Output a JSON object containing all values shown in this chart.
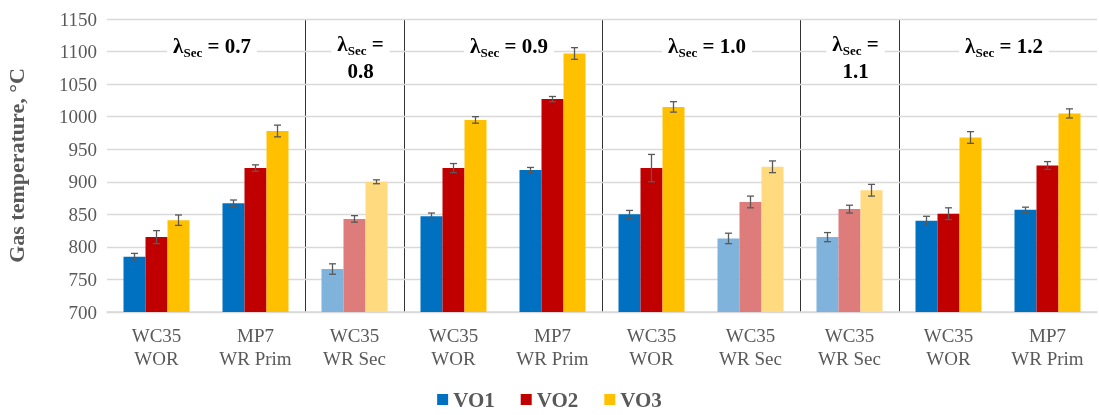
{
  "chart_data": [
    {
      "type": "bar",
      "title": "λ$_{Sec}$ = 0.7",
      "ylabel": "Gas temperature, °C",
      "categories": [
        "WC35\nWOR",
        "MP7\nWR Prim"
      ],
      "ylim": [
        700,
        1150
      ],
      "yticks": [
        700,
        750,
        800,
        850,
        900,
        950,
        1000,
        1050,
        1100,
        1150
      ],
      "grid": "y",
      "series": [
        {
          "color": "#0070c0",
          "values": [
            785,
            867
          ],
          "errors": [
            5,
            5
          ]
        },
        {
          "color": "#c00000",
          "values": [
            815,
            921
          ],
          "errors": [
            10,
            5
          ]
        },
        {
          "color": "#ffc000",
          "values": [
            841,
            978
          ],
          "errors": [
            8,
            9
          ]
        }
      ]
    },
    {
      "type": "bar",
      "title": "λ$_{Sec}$ = 0.8",
      "categories": [
        "WC35\nWR Sec"
      ],
      "ylim": [
        700,
        1150
      ],
      "yticks": [
        700,
        750,
        800,
        850,
        900,
        950,
        1000,
        1050,
        1100,
        1150
      ],
      "grid": "y",
      "tick_labels": "x",
      "series": [
        {
          "color": "#7fb3dc",
          "values": [
            766
          ],
          "errors": [
            8
          ]
        },
        {
          "color": "#de7b7b",
          "values": [
            843
          ],
          "errors": [
            5
          ]
        },
        {
          "color": "#ffda7f",
          "values": [
            900
          ],
          "errors": [
            3
          ]
        }
      ]
    },
    {
      "type": "bar",
      "title": "λ$_{Sec}$ = 0.9",
      "categories": [
        "WC35\nWOR",
        "MP7\nWR Prim"
      ],
      "ylim": [
        700,
        1150
      ],
      "yticks": [
        700,
        750,
        800,
        850,
        900,
        950,
        1000,
        1050,
        1100,
        1150
      ],
      "grid": "y",
      "tick_labels": "x",
      "legend": "bottom",
      "series": [
        {
          "name": "VO1",
          "color": "#0070c0",
          "values": [
            847,
            918
          ],
          "errors": [
            5,
            4
          ]
        },
        {
          "name": "VO2",
          "color": "#c00000",
          "values": [
            921,
            1027
          ],
          "errors": [
            7,
            4
          ]
        },
        {
          "name": "VO3",
          "color": "#ffc000",
          "values": [
            995,
            1097
          ],
          "errors": [
            5,
            9
          ]
        }
      ]
    },
    {
      "type": "bar",
      "title": "λ$_{Sec}$ = 1.0",
      "categories": [
        "WC35\nWOR",
        "WC35\nWR Sec"
      ],
      "ylim": [
        700,
        1150
      ],
      "yticks": [
        700,
        750,
        800,
        850,
        900,
        950,
        1000,
        1050,
        1100,
        1150
      ],
      "grid": "y",
      "tick_labels": "x",
      "series": [
        {
          "colors": [
            "#0070c0",
            "#7fb3dc"
          ],
          "values": [
            850,
            813
          ],
          "errors": [
            6,
            8
          ]
        },
        {
          "colors": [
            "#c00000",
            "#de7b7b"
          ],
          "values": [
            921,
            869
          ],
          "errors": [
            21,
            9
          ]
        },
        {
          "colors": [
            "#ffc000",
            "#ffda7f"
          ],
          "values": [
            1015,
            923
          ],
          "errors": [
            8,
            9
          ]
        }
      ]
    },
    {
      "type": "bar",
      "title": "λ$_{Sec}$ = 1.1",
      "categories": [
        "WC35\nWR Sec"
      ],
      "ylim": [
        700,
        1150
      ],
      "yticks": [
        700,
        750,
        800,
        850,
        900,
        950,
        1000,
        1050,
        1100,
        1150
      ],
      "grid": "y",
      "tick_labels": "x",
      "series": [
        {
          "color": "#7fb3dc",
          "values": [
            815
          ],
          "errors": [
            7
          ]
        },
        {
          "color": "#de7b7b",
          "values": [
            858
          ],
          "errors": [
            6
          ]
        },
        {
          "color": "#ffda7f",
          "values": [
            887
          ],
          "errors": [
            9
          ]
        }
      ]
    },
    {
      "type": "bar",
      "title": "λ$_{Sec}$ = 1.2",
      "categories": [
        "WC35\nWOR",
        "MP7\nWR Prim"
      ],
      "ylim": [
        700,
        1150
      ],
      "yticks": [
        700,
        750,
        800,
        850,
        900,
        950,
        1000,
        1050,
        1100,
        1150
      ],
      "grid": "y",
      "tick_labels": "x",
      "series": [
        {
          "color": "#0070c0",
          "values": [
            840,
            857
          ],
          "errors": [
            7,
            4
          ]
        },
        {
          "color": "#c00000",
          "values": [
            851,
            925
          ],
          "errors": [
            9,
            6
          ]
        },
        {
          "color": "#ffc000",
          "values": [
            968,
            1005
          ],
          "errors": [
            9,
            7
          ]
        }
      ]
    }
  ]
}
